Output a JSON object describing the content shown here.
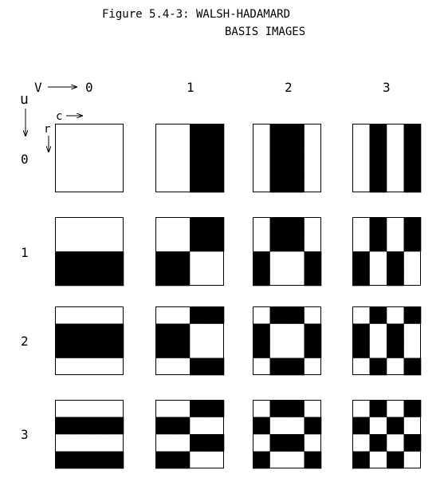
{
  "figure": {
    "title_line1": "Figure 5.4-3: WALSH-HADAMARD",
    "title_line2": "BASIS IMAGES"
  },
  "axes": {
    "v_label": "V",
    "u_label": "u",
    "c_label": "c",
    "r_label": "r"
  },
  "column_labels": [
    "0",
    "1",
    "2",
    "3"
  ],
  "row_labels": [
    "0",
    "1",
    "2",
    "3"
  ],
  "basis_images": {
    "description_values": "Each cell is a 4x4 pattern; 1 = black, 0 = white. Indexed [u][v][r][c].",
    "sequency_walsh": [
      [
        0,
        0,
        0,
        0
      ],
      [
        0,
        0,
        1,
        1
      ],
      [
        0,
        1,
        1,
        0
      ],
      [
        0,
        1,
        0,
        1
      ]
    ]
  },
  "colors": {
    "black": "#000000",
    "white": "#ffffff"
  }
}
